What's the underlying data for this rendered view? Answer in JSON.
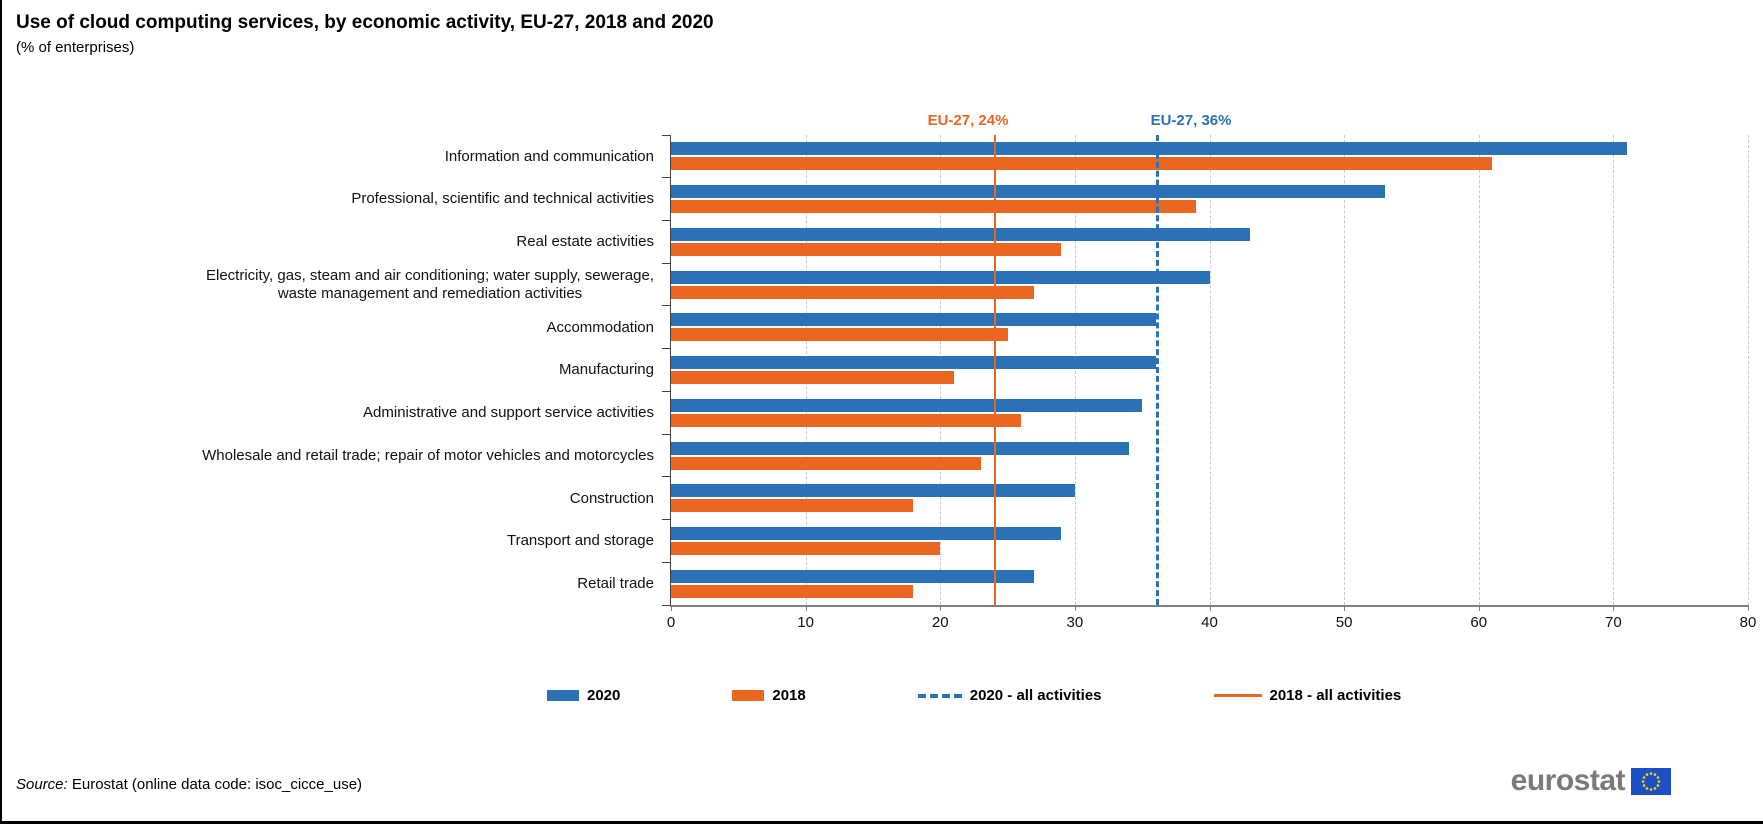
{
  "header": {
    "title": "Use of cloud computing services, by economic activity, EU-27, 2018 and 2020",
    "subtitle": "(% of enterprises)"
  },
  "chart_data": {
    "type": "bar",
    "orientation": "horizontal",
    "title": "Use of cloud computing services, by economic activity, EU-27, 2018 and 2020",
    "unit": "% of enterprises",
    "categories": [
      "Information and communication",
      "Professional, scientific and technical activities",
      "Real estate activities",
      "Electricity, gas, steam and air conditioning; water supply, sewerage,\nwaste management and remediation activities",
      "Accommodation",
      "Manufacturing",
      "Administrative and support service activities",
      "Wholesale and retail trade; repair of motor vehicles and motorcycles",
      "Construction",
      "Transport and storage",
      "Retail trade"
    ],
    "series": [
      {
        "name": "2020",
        "color": "#2A72B5",
        "values": [
          71,
          53,
          43,
          40,
          36,
          36,
          35,
          34,
          30,
          29,
          27
        ]
      },
      {
        "name": "2018",
        "color": "#EB661E",
        "values": [
          61,
          39,
          29,
          27,
          25,
          21,
          26,
          23,
          18,
          20,
          18
        ]
      }
    ],
    "reference_lines": [
      {
        "name": "2018 - all activities",
        "label": "EU-27, 24%",
        "value": 24,
        "style": "solid",
        "color": "#EB661E"
      },
      {
        "name": "2020 - all activities",
        "label": "EU-27, 36%",
        "value": 36,
        "style": "dashed",
        "color": "#2A72B5"
      }
    ],
    "xlim": [
      0,
      80
    ],
    "xticks": [
      0,
      10,
      20,
      30,
      40,
      50,
      60,
      70,
      80
    ],
    "grid": "vertical-dashed",
    "legend_position": "bottom"
  },
  "legend": {
    "items": [
      {
        "label": "2020",
        "type": "swatch",
        "color": "#2A72B5"
      },
      {
        "label": "2018",
        "type": "swatch",
        "color": "#EB661E"
      },
      {
        "label": "2020 - all activities",
        "type": "dashed-line",
        "color": "#2A72B5"
      },
      {
        "label": "2018 - all activities",
        "type": "solid-line",
        "color": "#EB661E"
      }
    ]
  },
  "footer": {
    "source_label": "Source:",
    "source_text": " Eurostat (online data code: isoc_cicce_use)",
    "logo_text": "eurostat"
  },
  "colors": {
    "blue": "#2A72B5",
    "orange": "#EB661E",
    "flag_blue": "#1C51C5",
    "flag_star": "#FFD800"
  }
}
